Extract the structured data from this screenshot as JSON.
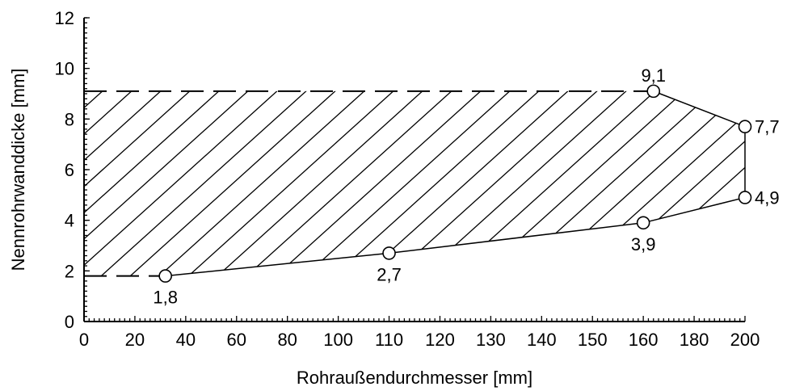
{
  "chart_data": {
    "type": "area",
    "xlabel": "Rohraußendurchmesser [mm]",
    "ylabel": "Nennrohrwanddicke [mm]",
    "xlim": [
      0,
      200
    ],
    "ylim": [
      0,
      12
    ],
    "x_ticks": [
      "0",
      "20",
      "40",
      "60",
      "80",
      "100",
      "110",
      "120",
      "130",
      "140",
      "150",
      "160",
      "180",
      "200"
    ],
    "y_ticks": [
      "0",
      "2",
      "4",
      "6",
      "8",
      "10",
      "12"
    ],
    "grid": false,
    "points": [
      {
        "x": 32,
        "y": 1.8,
        "label": "1,8"
      },
      {
        "x": 110,
        "y": 2.7,
        "label": "2,7"
      },
      {
        "x": 160,
        "y": 3.9,
        "label": "3,9"
      },
      {
        "x": 200,
        "y": 4.9,
        "label": "4,9"
      },
      {
        "x": 200,
        "y": 7.7,
        "label": "7,7"
      },
      {
        "x": 164,
        "y": 9.1,
        "label": "9,1"
      }
    ],
    "dashed_upper_limit": 9.1,
    "dashed_lower_limit": 1.8,
    "fill": "hatched"
  }
}
